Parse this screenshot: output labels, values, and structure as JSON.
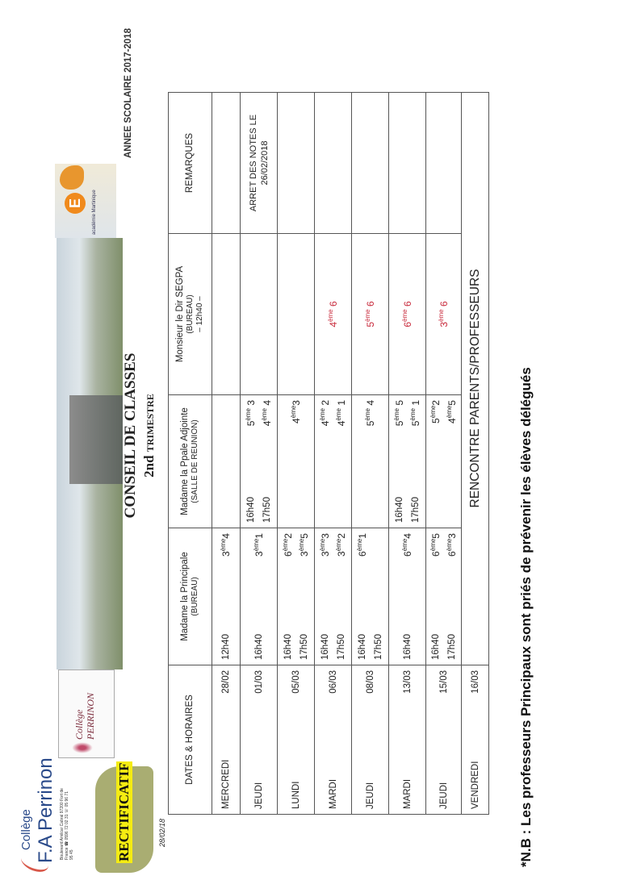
{
  "header": {
    "school_name_line1": "Collège",
    "school_name_line2": "F.A Perrinon",
    "school_address": "Boulevard Amilcar Cabral 97200 Fort de France ☎ 0596 72 02 31 ☏ 05 96 71 95 45",
    "rectificatif": "RECTIFICATIF",
    "doc_date": "28/02/18",
    "perrinon_logo_text": "Collège PERRINON",
    "academie_logo_text": "académie Martinique",
    "academie_letter": "E",
    "annee": "ANNEE SCOLAIRE 2017-2018",
    "title": "CONSEIL DE CLASSES",
    "subtitle_big": "2nd",
    "subtitle_small": "TRIMESTRE"
  },
  "table": {
    "columns": [
      {
        "title": "DATES & HORAIRES",
        "sub": ""
      },
      {
        "title": "Madame la Principale",
        "sub": "(BUREAU)"
      },
      {
        "title": "Madame la Ppale Adjointe",
        "sub": "(SALLE DE REUNION)"
      },
      {
        "title": "Monsieur le Dir SEGPA",
        "sub": "(BUREAU)",
        "sub2": "– 12h40 –"
      },
      {
        "title": "REMARQUES",
        "sub": ""
      }
    ],
    "rows": [
      {
        "day": "MERCREDI",
        "date": "28/02",
        "principale": [
          {
            "time": "12h40",
            "n": "3",
            "s": "ème",
            "c": "4"
          }
        ],
        "adjointe": [],
        "segpa": null,
        "remarque": ""
      },
      {
        "day": "JEUDI",
        "date": "01/03",
        "principale": [
          {
            "time": "16h40",
            "n": "3",
            "s": "ème",
            "c": "1"
          }
        ],
        "adjointe": [
          {
            "time": "16h40",
            "n": "5",
            "s": "ème",
            "c": " 3"
          },
          {
            "time": "17h50",
            "n": "4",
            "s": "ème",
            "c": " 4"
          }
        ],
        "segpa": null,
        "remarque": "ARRET DES NOTES LE 26/02/2018"
      },
      {
        "day": "LUNDI",
        "date": "05/03",
        "principale": [
          {
            "time": "16h40",
            "n": "6",
            "s": "ème",
            "c": "2"
          },
          {
            "time": "17h50",
            "n": "3",
            "s": "ème",
            "c": "5"
          }
        ],
        "adjointe": [
          {
            "time": "",
            "n": "4",
            "s": "ème",
            "c": "3"
          }
        ],
        "segpa": null,
        "remarque": ""
      },
      {
        "day": "MARDI",
        "date": "06/03",
        "principale": [
          {
            "time": "16h40",
            "n": "3",
            "s": "ème",
            "c": "3"
          },
          {
            "time": "17h50",
            "n": "3",
            "s": "ème",
            "c": "2"
          }
        ],
        "adjointe": [
          {
            "time": "",
            "n": "4",
            "s": "ème",
            "c": " 2"
          },
          {
            "time": "",
            "n": "4",
            "s": "ème",
            "c": " 1"
          }
        ],
        "segpa": {
          "n": "4",
          "s": "ème",
          "c": " 6"
        },
        "remarque": ""
      },
      {
        "day": "JEUDI",
        "date": "08/03",
        "principale": [
          {
            "time": "16h40",
            "n": "6",
            "s": "ème",
            "c": "1"
          },
          {
            "time": "17h50",
            "n": "",
            "s": "",
            "c": ""
          }
        ],
        "adjointe": [
          {
            "time": "",
            "n": "5",
            "s": "ème",
            "c": " 4"
          }
        ],
        "segpa": {
          "n": "5",
          "s": "ème",
          "c": " 6"
        },
        "remarque": ""
      },
      {
        "day": "MARDI",
        "date": "13/03",
        "principale": [
          {
            "time": "16h40",
            "n": "6",
            "s": "ème",
            "c": "4"
          }
        ],
        "adjointe": [
          {
            "time": "16h40",
            "n": "5",
            "s": "ème",
            "c": " 5"
          },
          {
            "time": "17h50",
            "n": "5",
            "s": "ème",
            "c": " 1"
          }
        ],
        "segpa": {
          "n": "6",
          "s": "ème",
          "c": " 6"
        },
        "remarque": ""
      },
      {
        "day": "JEUDI",
        "date": "15/03",
        "principale": [
          {
            "time": "16h40",
            "n": "6",
            "s": "ème",
            "c": "5"
          },
          {
            "time": "17h50",
            "n": "6",
            "s": "ème",
            "c": "3"
          }
        ],
        "adjointe": [
          {
            "time": "",
            "n": "5",
            "s": "ème",
            "c": "2"
          },
          {
            "time": "",
            "n": "4",
            "s": "ème",
            "c": "5"
          }
        ],
        "segpa": {
          "n": "3",
          "s": "ème",
          "c": " 6"
        },
        "remarque": ""
      }
    ],
    "last_row": {
      "day": "VENDREDI",
      "date": "16/03",
      "text": "RENCONTRE PARENTS/PROFESSEURS"
    }
  },
  "footer": {
    "note": "*N.B : Les professeurs Principaux sont priés de prévenir les élèves délégués"
  },
  "colors": {
    "segpa_text": "#c8283a",
    "rectificatif_bg": "#f5ec12",
    "banner": "#a9ad72"
  }
}
